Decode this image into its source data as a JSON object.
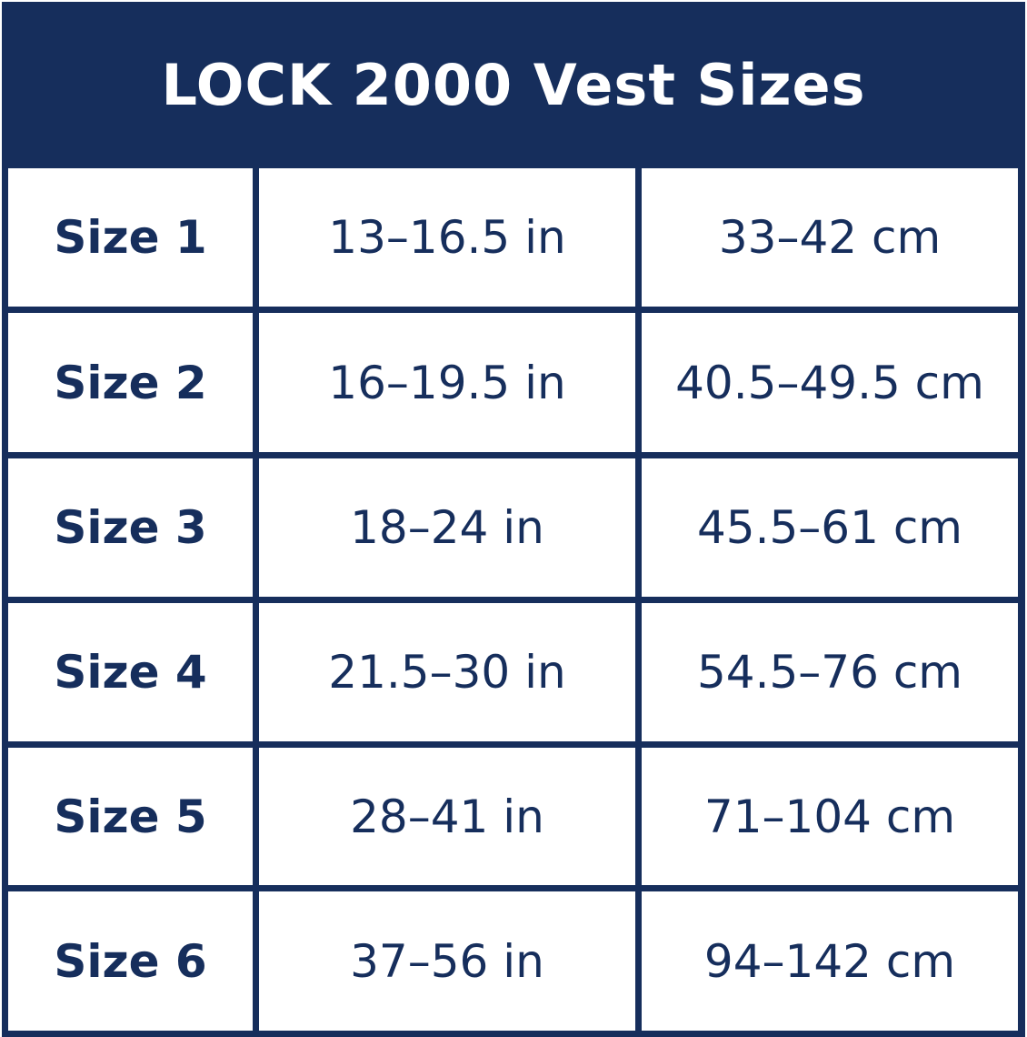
{
  "title": "LOCK 2000 Vest Sizes",
  "colors": {
    "primary": "#162e5c",
    "background": "#ffffff"
  },
  "rows": [
    {
      "size": "Size 1",
      "inches": "13–16.5 in",
      "cm": "33–42 cm"
    },
    {
      "size": "Size 2",
      "inches": "16–19.5 in",
      "cm": "40.5–49.5 cm"
    },
    {
      "size": "Size 3",
      "inches": "18–24 in",
      "cm": "45.5–61 cm"
    },
    {
      "size": "Size 4",
      "inches": "21.5–30 in",
      "cm": "54.5–76 cm"
    },
    {
      "size": "Size 5",
      "inches": "28–41 in",
      "cm": "71–104 cm"
    },
    {
      "size": "Size 6",
      "inches": "37–56 in",
      "cm": "94–142 cm"
    }
  ]
}
